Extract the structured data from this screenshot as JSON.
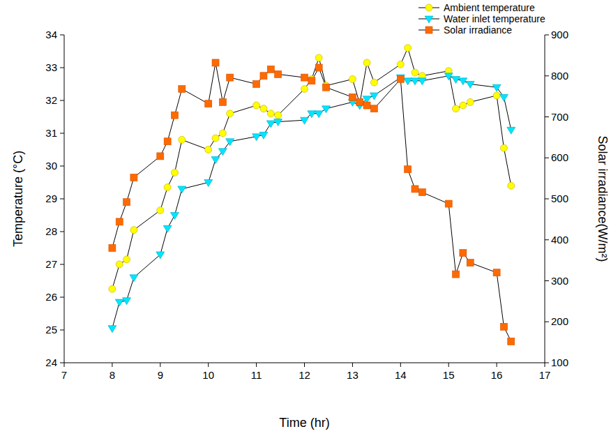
{
  "chart_data": {
    "type": "line",
    "x_label": "Time (hr)",
    "y_label": "Temperature (°C)",
    "y2_label": "Solar irradiance(W/m²)",
    "xlim": [
      7,
      17
    ],
    "xticks": [
      7,
      8,
      9,
      10,
      11,
      12,
      13,
      14,
      15,
      16,
      17
    ],
    "ylim": [
      24,
      34
    ],
    "yticks": [
      24,
      25,
      26,
      27,
      28,
      29,
      30,
      31,
      32,
      33,
      34
    ],
    "y2lim": [
      100,
      900
    ],
    "y2ticks": [
      100,
      200,
      300,
      400,
      500,
      600,
      700,
      800,
      900
    ],
    "legend": "top-right",
    "x": [
      8.0,
      8.15,
      8.3,
      8.45,
      9.0,
      9.15,
      9.3,
      9.45,
      10.0,
      10.15,
      10.3,
      10.45,
      11.0,
      11.15,
      11.3,
      11.45,
      12.0,
      12.15,
      12.3,
      12.45,
      13.0,
      13.15,
      13.3,
      13.45,
      14.0,
      14.15,
      14.3,
      14.45,
      15.0,
      15.15,
      15.3,
      15.45,
      16.0,
      16.15,
      16.3
    ],
    "series": [
      {
        "name": "Ambient temperature",
        "color": "#ffff00",
        "marker": "circle",
        "line_style": "solid",
        "values": [
          26.25,
          27.0,
          27.15,
          28.05,
          28.65,
          29.35,
          29.8,
          30.8,
          30.5,
          30.85,
          31.0,
          31.6,
          31.85,
          31.75,
          31.6,
          31.55,
          32.35,
          32.65,
          33.3,
          32.45,
          32.65,
          31.9,
          33.15,
          32.55,
          33.1,
          33.6,
          32.85,
          32.75,
          32.9,
          31.75,
          31.85,
          31.95,
          32.15,
          30.55,
          29.4
        ]
      },
      {
        "name": "Water inlet temperature",
        "color": "#00e5ff",
        "marker": "triangle-down",
        "line_style": "solid",
        "values": [
          25.05,
          25.85,
          25.9,
          26.6,
          27.3,
          28.1,
          28.5,
          29.3,
          29.5,
          30.2,
          30.45,
          30.75,
          30.9,
          30.95,
          31.3,
          31.35,
          31.4,
          31.6,
          31.6,
          31.75,
          31.95,
          31.85,
          32.05,
          32.15,
          32.7,
          32.6,
          32.6,
          32.6,
          32.75,
          32.65,
          32.6,
          32.5,
          32.4,
          32.1,
          31.1
        ]
      },
      {
        "name": "Solar irradiance",
        "color": "#ff6a00",
        "marker": "square",
        "line_style": "solid",
        "axis": "y2",
        "values": [
          380,
          444,
          492,
          552,
          604,
          640,
          704,
          768,
          732,
          832,
          736,
          796,
          780,
          800,
          816,
          804,
          796,
          788,
          820,
          772,
          748,
          736,
          728,
          720,
          792,
          572,
          524,
          516,
          488,
          316,
          368,
          344,
          320,
          188,
          152
        ]
      }
    ]
  }
}
